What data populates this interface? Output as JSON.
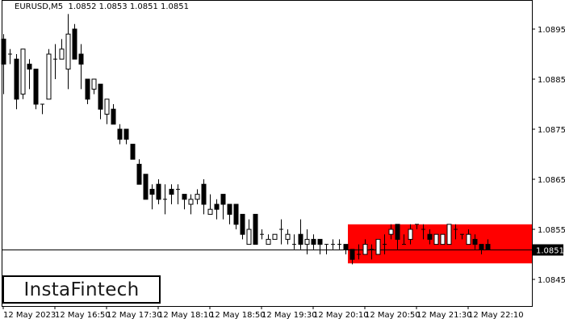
{
  "header": {
    "symbol": "EURUSD,M5",
    "ohlc": "1.0852 1.0853 1.0851 1.0851"
  },
  "logo": {
    "text": "InstaFintech"
  },
  "colors": {
    "background": "#ffffff",
    "candle_bear": "#000000",
    "candle_bull": "#ffffff",
    "zone": "#ff0000",
    "price_label_bg": "#000000",
    "price_label_fg": "#ffffff"
  },
  "chart_data": {
    "type": "candlestick",
    "title": "EURUSD,M5",
    "xlabel": "",
    "ylabel": "",
    "ylim": [
      1.08408,
      1.0901
    ],
    "current_price": 1.0851,
    "current_price_label": "1.0851",
    "y_ticks": [
      "1.0895",
      "1.0885",
      "1.0875",
      "1.0865",
      "1.0855",
      "1.0845"
    ],
    "x_ticks": [
      "12 May 2023",
      "12 May 16:50",
      "12 May 17:30",
      "12 May 18:10",
      "12 May 18:50",
      "12 May 19:30",
      "12 May 20:10",
      "12 May 20:50",
      "12 May 21:30",
      "12 May 22:10"
    ],
    "zone": {
      "type": "rectangle",
      "from_index": 54,
      "price_top": 1.0856,
      "price_bottom": 1.08482,
      "color": "#ff0000"
    },
    "candles": [
      [
        1.0893,
        1.0894,
        1.0882,
        1.0888
      ],
      [
        1.089,
        1.0891,
        1.0888,
        1.089
      ],
      [
        1.0889,
        1.089,
        1.0879,
        1.0881
      ],
      [
        1.0882,
        1.0891,
        1.0881,
        1.0891
      ],
      [
        1.0888,
        1.0889,
        1.0883,
        1.0887
      ],
      [
        1.0887,
        1.0887,
        1.0879,
        1.088
      ],
      [
        1.088,
        1.088,
        1.0878,
        1.088
      ],
      [
        1.0881,
        1.0891,
        1.0881,
        1.089
      ],
      [
        1.0889,
        1.0892,
        1.0885,
        1.0889
      ],
      [
        1.0889,
        1.0893,
        1.0889,
        1.0891
      ],
      [
        1.0887,
        1.0898,
        1.0883,
        1.0894
      ],
      [
        1.0895,
        1.0896,
        1.0889,
        1.0889
      ],
      [
        1.089,
        1.0892,
        1.0883,
        1.0888
      ],
      [
        1.0885,
        1.0885,
        1.088,
        1.0881
      ],
      [
        1.0883,
        1.0884,
        1.0882,
        1.0885
      ],
      [
        1.0884,
        1.0884,
        1.0877,
        1.0879
      ],
      [
        1.0878,
        1.088,
        1.0876,
        1.0881
      ],
      [
        1.0879,
        1.088,
        1.0876,
        1.0876
      ],
      [
        1.0875,
        1.0876,
        1.0872,
        1.0873
      ],
      [
        1.0875,
        1.0875,
        1.0872,
        1.0873
      ],
      [
        1.0872,
        1.0872,
        1.0869,
        1.0869
      ],
      [
        1.0868,
        1.0869,
        1.0865,
        1.0864
      ],
      [
        1.0866,
        1.0866,
        1.0861,
        1.0861
      ],
      [
        1.0863,
        1.0864,
        1.0859,
        1.0862
      ],
      [
        1.0864,
        1.0865,
        1.086,
        1.0861
      ],
      [
        1.0861,
        1.0864,
        1.0858,
        1.0861
      ],
      [
        1.0863,
        1.0864,
        1.086,
        1.0862
      ],
      [
        1.0863,
        1.0864,
        1.086,
        1.0863
      ],
      [
        1.0862,
        1.0862,
        1.0859,
        1.0861
      ],
      [
        1.086,
        1.0862,
        1.0858,
        1.0861
      ],
      [
        1.0861,
        1.0863,
        1.086,
        1.0862
      ],
      [
        1.0864,
        1.0865,
        1.0858,
        1.086
      ],
      [
        1.0858,
        1.0862,
        1.0858,
        1.0859
      ],
      [
        1.086,
        1.0861,
        1.0857,
        1.0859
      ],
      [
        1.0862,
        1.0862,
        1.0857,
        1.086
      ],
      [
        1.086,
        1.086,
        1.0856,
        1.0858
      ],
      [
        1.086,
        1.086,
        1.0855,
        1.0856
      ],
      [
        1.0858,
        1.0858,
        1.0853,
        1.0854
      ],
      [
        1.0852,
        1.0857,
        1.0852,
        1.0855
      ],
      [
        1.0858,
        1.0858,
        1.0852,
        1.0852
      ],
      [
        1.0854,
        1.0855,
        1.0853,
        1.0854
      ],
      [
        1.0852,
        1.0854,
        1.0852,
        1.0853
      ],
      [
        1.0853,
        1.0854,
        1.0853,
        1.0854
      ],
      [
        1.0855,
        1.0857,
        1.0852,
        1.0855
      ],
      [
        1.0853,
        1.0855,
        1.0852,
        1.0854
      ],
      [
        1.0852,
        1.0854,
        1.0851,
        1.0852
      ],
      [
        1.0854,
        1.0857,
        1.0851,
        1.0852
      ],
      [
        1.0852,
        1.0855,
        1.085,
        1.0853
      ],
      [
        1.0853,
        1.0854,
        1.0851,
        1.0852
      ],
      [
        1.0853,
        1.0853,
        1.085,
        1.0852
      ],
      [
        1.0852,
        1.0852,
        1.085,
        1.0852
      ],
      [
        1.0852,
        1.0853,
        1.0851,
        1.0852
      ],
      [
        1.0852,
        1.0853,
        1.0851,
        1.0852
      ],
      [
        1.0852,
        1.0852,
        1.085,
        1.0851
      ],
      [
        1.0851,
        1.0851,
        1.0848,
        1.0849
      ],
      [
        1.085,
        1.0852,
        1.0849,
        1.085
      ],
      [
        1.085,
        1.0853,
        1.085,
        1.0852
      ],
      [
        1.0851,
        1.0852,
        1.0849,
        1.0851
      ],
      [
        1.085,
        1.0853,
        1.085,
        1.0853
      ],
      [
        1.0852,
        1.0854,
        1.085,
        1.0852
      ],
      [
        1.0854,
        1.0856,
        1.0853,
        1.0855
      ],
      [
        1.0856,
        1.0856,
        1.0851,
        1.0853
      ],
      [
        1.0852,
        1.0854,
        1.0852,
        1.0852
      ],
      [
        1.0853,
        1.0856,
        1.0852,
        1.0855
      ],
      [
        1.0856,
        1.0856,
        1.0855,
        1.0856
      ],
      [
        1.0855,
        1.0856,
        1.0853,
        1.0855
      ],
      [
        1.0854,
        1.0855,
        1.0852,
        1.0853
      ],
      [
        1.0852,
        1.0854,
        1.0852,
        1.0854
      ],
      [
        1.0852,
        1.0854,
        1.0852,
        1.0854
      ],
      [
        1.0852,
        1.0856,
        1.0852,
        1.0856
      ],
      [
        1.0855,
        1.0856,
        1.0853,
        1.0855
      ],
      [
        1.0854,
        1.0854,
        1.0853,
        1.0854
      ],
      [
        1.0852,
        1.0855,
        1.0852,
        1.0854
      ],
      [
        1.0853,
        1.0854,
        1.0851,
        1.0852
      ],
      [
        1.0852,
        1.0852,
        1.085,
        1.0851
      ],
      [
        1.0852,
        1.0853,
        1.0851,
        1.0851
      ]
    ]
  }
}
